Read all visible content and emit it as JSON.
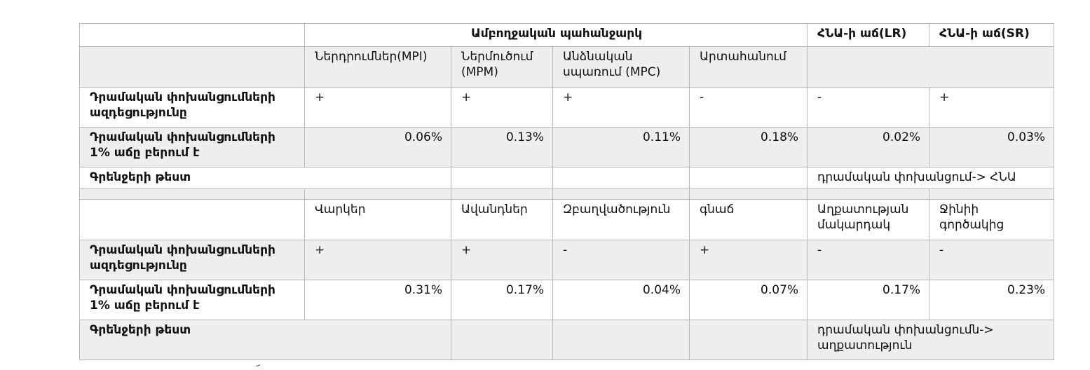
{
  "top": {
    "header": {
      "empty": "",
      "demand": "Ամբողջական պահանջարկ",
      "gdp_lr": "ՀՆԱ-ի աճ(LR)",
      "gdp_sr": "ՀՆԱ-ի աճ(SR)"
    },
    "subheaders": [
      "Ներդրումներ(MPI)",
      "Ներմուծում (MPM)",
      "Անձնական սպառում (MPC)",
      "Արտահանում",
      "",
      ""
    ],
    "row_impact": {
      "label": "Դրամական փոխանցումների ազդեցությունը",
      "values": [
        "+",
        "+",
        "+",
        "-",
        "-",
        "+"
      ]
    },
    "row_growth": {
      "label": "Դրամական փոխանցումների 1% աճը բերում է",
      "values": [
        "0.06%",
        "0.13%",
        "0.11%",
        "0.18%",
        "0.02%",
        "0.03%"
      ]
    },
    "row_granger": {
      "label": "Գրենջերի թեստ",
      "values": [
        "",
        "",
        "",
        "",
        "դրամական փոխանցում-> ՀՆԱ"
      ]
    }
  },
  "bottom": {
    "subheaders": [
      "Վարկեր",
      "Ավանդներ",
      "Զբաղվածություն",
      "գնաճ",
      "Աղքատության մակարդակ",
      "Ջինիի գործակից"
    ],
    "row_impact": {
      "label": "Դրամական փոխանցումների ազդեցությունը",
      "values": [
        "+",
        "+",
        "-",
        "+",
        "-",
        "-"
      ]
    },
    "row_growth": {
      "label": "Դրամական փոխանցումների 1% աճը բերում է",
      "values": [
        "0.31%",
        "0.17%",
        "0.04%",
        "0.07%",
        "0.17%",
        "0.23%"
      ]
    },
    "row_granger": {
      "label": "Գրենջերի թեստ",
      "values": [
        "",
        "",
        "",
        "դրամական փոխանցումն-> աղքատություն"
      ]
    }
  }
}
